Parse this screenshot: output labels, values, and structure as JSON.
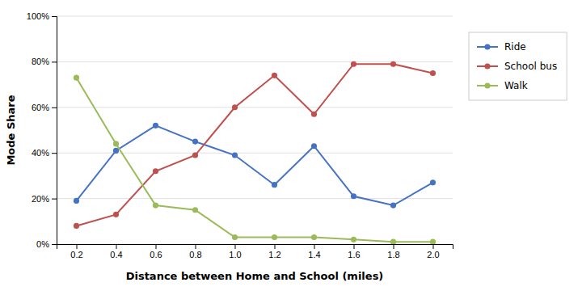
{
  "chart_data": {
    "type": "line",
    "xlabel": "Distance between Home and School (miles)",
    "ylabel": "Mode Share",
    "x": [
      0.2,
      0.4,
      0.6,
      0.8,
      1.0,
      1.2,
      1.4,
      1.6,
      1.8,
      2.0
    ],
    "series": [
      {
        "name": "Ride",
        "color": "#4472C4",
        "marker": "circle",
        "values": [
          0.19,
          0.41,
          0.52,
          0.45,
          0.39,
          0.26,
          0.43,
          0.21,
          0.17,
          0.27
        ]
      },
      {
        "name": "School bus",
        "color": "#C0504D",
        "marker": "circle",
        "values": [
          0.08,
          0.13,
          0.32,
          0.39,
          0.6,
          0.74,
          0.57,
          0.79,
          0.79,
          0.75
        ]
      },
      {
        "name": "Walk",
        "color": "#9BBB59",
        "marker": "circle",
        "values": [
          0.73,
          0.44,
          0.17,
          0.15,
          0.03,
          0.03,
          0.03,
          0.02,
          0.01,
          0.01
        ]
      }
    ],
    "xlim": [
      0.1,
      2.1
    ],
    "xticks": [
      0.2,
      0.4,
      0.6,
      0.8,
      {
        "value": 1,
        "label": "1.0"
      },
      1.2,
      1.4,
      1.6,
      1.8,
      {
        "value": 2,
        "label": "2.0"
      }
    ],
    "ylim": [
      0,
      1
    ],
    "yticks": [
      {
        "value": 0,
        "label": "0%"
      },
      {
        "value": 0.2,
        "label": "20%"
      },
      {
        "value": 0.4,
        "label": "40%"
      },
      {
        "value": 0.6,
        "label": "60%"
      },
      {
        "value": 0.8,
        "label": "80%"
      },
      {
        "value": 1,
        "label": "100%"
      }
    ],
    "grid": true,
    "legend": "right"
  }
}
